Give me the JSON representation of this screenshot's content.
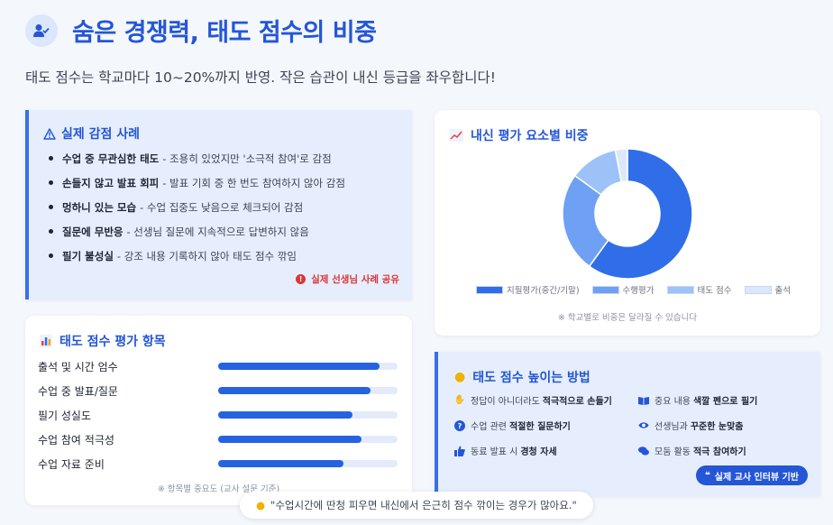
{
  "header": {
    "title": "숨은 경쟁력, 태도 점수의 비중",
    "subtitle": "태도 점수는 학교마다 10~20%까지 반영. 작은 습관이 내신 등급을 좌우합니다!",
    "icon": "user-check-icon"
  },
  "cases": {
    "title": "실제 감점 사례",
    "items": [
      {
        "bold": "수업 중 무관심한 태도",
        "text": "- 조용히 있었지만 '소극적 참여'로 감점"
      },
      {
        "bold": "손들지 않고 발표 회피",
        "text": "- 발표 기회 중 한 번도 참여하지 않아 감점"
      },
      {
        "bold": "멍하니 있는 모습",
        "text": "- 수업 집중도 낮음으로 체크되어 감점"
      },
      {
        "bold": "질문에 무반응",
        "text": "- 선생님 질문에 지속적으로 답변하지 않음"
      },
      {
        "bold": "필기 불성실",
        "text": "- 강조 내용 기록하지 않아 태도 점수 깎임"
      }
    ],
    "share_label": "실제 선생님 사례 공유"
  },
  "evaluation": {
    "title": "태도 점수 평가 항목",
    "items": [
      {
        "label": "출석 및 시간 엄수",
        "value": 0.9
      },
      {
        "label": "수업 중 발표/질문",
        "value": 0.85
      },
      {
        "label": "필기 성실도",
        "value": 0.75
      },
      {
        "label": "수업 참여 적극성",
        "value": 0.8
      },
      {
        "label": "수업 자료 준비",
        "value": 0.7
      }
    ],
    "note": "※ 항목별 중요도 (교사 설문 기준)"
  },
  "chart_data": {
    "type": "pie",
    "title": "내신 평가 요소별 비중",
    "categories": [
      "지필평가(중간/기말)",
      "수행평가",
      "태도 점수",
      "출석"
    ],
    "values": [
      60,
      25,
      12,
      3
    ],
    "colors": [
      "#2f6ee8",
      "#6ea1f3",
      "#9cc2f8",
      "#dbe8fc"
    ],
    "note": "※ 학교별로 비중은 달라질 수 있습니다"
  },
  "tips": {
    "title": "태도 점수 높이는 방법",
    "items": [
      {
        "icon": "hand-raise-icon",
        "text": "정답이 아니더라도",
        "bold": "적극적으로 손들기"
      },
      {
        "icon": "book-icon",
        "text": "중요 내용",
        "bold": "색깔 펜으로 필기"
      },
      {
        "icon": "question-icon",
        "text": "수업 관련",
        "bold": "적절한 질문하기"
      },
      {
        "icon": "eye-icon",
        "text": "선생님과",
        "bold": "꾸준한 눈맞춤"
      },
      {
        "icon": "thumbs-up-icon",
        "text": "동료 발표 시",
        "bold": "경청 자세"
      },
      {
        "icon": "comments-icon",
        "text": "모둠 활동",
        "bold": "적극 참여하기"
      }
    ],
    "badge_label": "실제 교사 인터뷰 기반"
  },
  "quote": {
    "text": "\"수업시간에 딴청 피우면 내신에서 은근히 점수 깎이는 경우가 많아요.\""
  }
}
